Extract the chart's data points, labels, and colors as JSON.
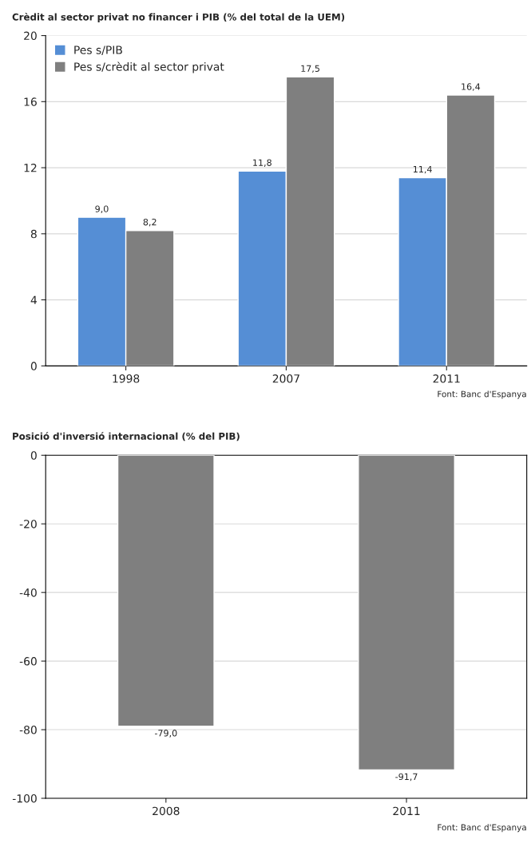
{
  "chart_data": [
    {
      "type": "bar",
      "title": "Crèdit al sector privat no financer i PIB (% del total de la UEM)",
      "categories": [
        "1998",
        "2007",
        "2011"
      ],
      "series": [
        {
          "name": "Pes s/PIB",
          "color": "#558ed5",
          "values": [
            9.0,
            11.8,
            11.4
          ],
          "value_labels": [
            "9,0",
            "11,8",
            "11,4"
          ]
        },
        {
          "name": "Pes s/crèdit al sector privat",
          "color": "#7f7f7f",
          "values": [
            8.2,
            17.5,
            16.4
          ],
          "value_labels": [
            "8,2",
            "17,5",
            "16,4"
          ]
        }
      ],
      "ylim": [
        0,
        20
      ],
      "yticks": [
        0,
        4,
        8,
        12,
        16,
        20
      ],
      "grid": "y",
      "legend": "top left",
      "annotations": [
        "Font: Banc d'Espanya"
      ]
    },
    {
      "type": "bar",
      "title": "Posició d'inversió internacional (% del PIB)",
      "categories": [
        "2008",
        "2011"
      ],
      "series": [
        {
          "color": "#7f7f7f",
          "values": [
            -79.0,
            -91.7
          ],
          "value_labels": [
            "-79,0",
            "-91,7"
          ]
        }
      ],
      "ylim": [
        -100,
        0
      ],
      "yticks": [
        -100,
        -80,
        -60,
        -40,
        -20,
        0
      ],
      "grid": "y",
      "legend": false,
      "annotations": [
        "Font: Banc d'Espanya"
      ]
    }
  ]
}
